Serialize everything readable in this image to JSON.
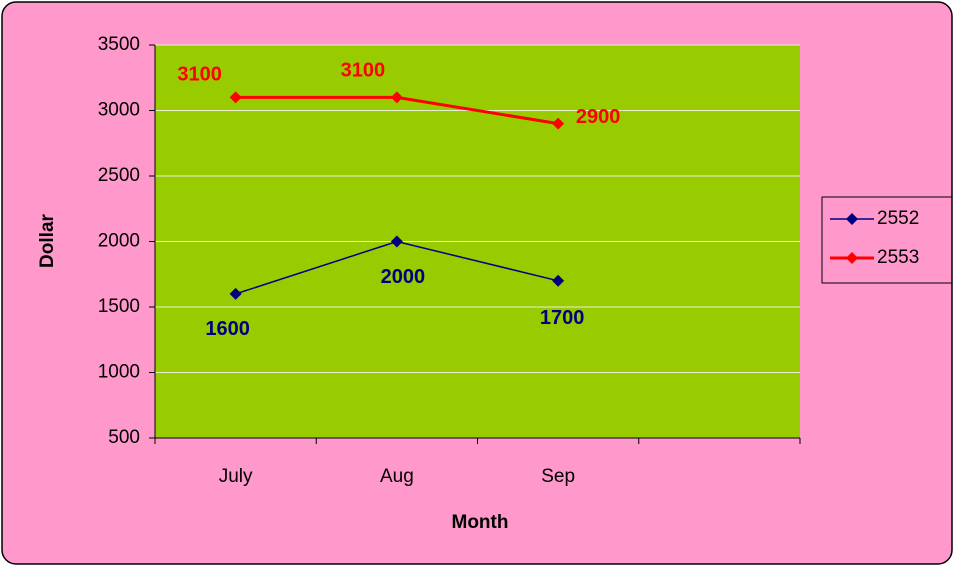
{
  "chart_data": {
    "type": "line",
    "categories": [
      "July",
      "Aug",
      "Sep",
      null
    ],
    "series": [
      {
        "name": "2552",
        "color": "#000080",
        "values": [
          1600,
          2000,
          1700,
          null
        ]
      },
      {
        "name": "2553",
        "color": "#ff0000",
        "values": [
          3100,
          3100,
          2900,
          null
        ]
      }
    ],
    "xlabel": "Month",
    "ylabel": "Dollar",
    "ylim": [
      500,
      3500
    ],
    "yticks": [
      500,
      1000,
      1500,
      2000,
      2500,
      3000,
      3500
    ],
    "grid": true,
    "legend": "right",
    "plot_color": "#99cc00",
    "background": "#ff99cc"
  }
}
